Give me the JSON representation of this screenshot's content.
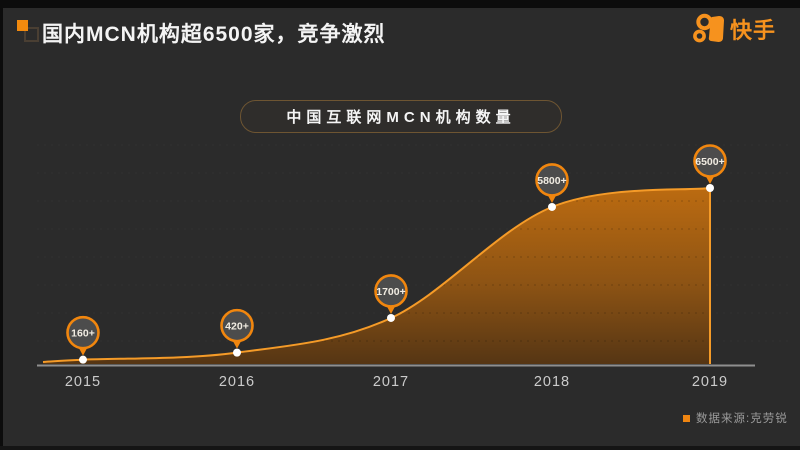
{
  "header": {
    "title": "国内MCN机构超6500家，竞争激烈",
    "logo_text": "快手"
  },
  "chart_title": "中国互联网MCN机构数量",
  "source_note": "数据来源:克劳锐",
  "colors": {
    "accent_orange": "#f1860e",
    "logo_orange": "#f6921e",
    "area_top": "#c06d10",
    "area_mid": "#8f5413",
    "area_bottom": "#573613",
    "balloon_fill": "#4c4c4c",
    "balloon_text": "#f1ece2",
    "axis_line": "#8f8f8f",
    "grid_line": "#454545",
    "year_label": "#cbcbcb",
    "background": "#2b2b2b"
  },
  "chart_data": {
    "type": "area",
    "title": "中国互联网MCN机构数量",
    "categories": [
      "2015",
      "2016",
      "2017",
      "2018",
      "2019"
    ],
    "values": [
      160,
      420,
      1700,
      5800,
      6500
    ],
    "point_labels": [
      "160+",
      "420+",
      "1700+",
      "5800+",
      "6500+"
    ],
    "xlabel": "",
    "ylabel": "",
    "ylim": [
      0,
      6500
    ],
    "grid": "horizontal-dashed",
    "legend": "none"
  }
}
